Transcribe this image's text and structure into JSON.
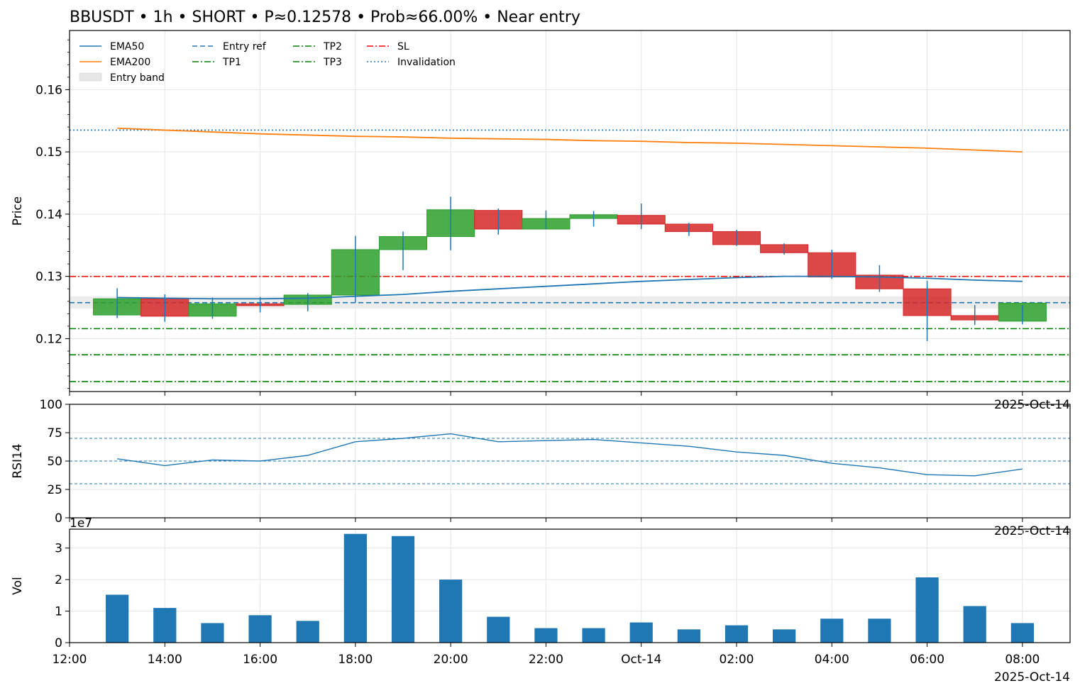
{
  "colors": {
    "ema50": "#1f77b4",
    "ema200": "#ff7f0e",
    "up": "#2ca02c",
    "down": "#d62728",
    "wick": "#1f77b4",
    "entry": "#1f77b4",
    "tp": "#008000",
    "sl": "#ff0000",
    "invalidation": "#1f77b4",
    "band": "#e6e6e6",
    "volume": "#1f77b4",
    "grid": "#e5e5e5"
  },
  "chart_data": [
    {
      "type": "candlestick",
      "title": "BBUSDT • 1h • SHORT • P≈0.12578 • Prob≈66.00% • Near entry",
      "ylabel": "Price",
      "ylim": [
        0.1115,
        0.1695
      ],
      "yticks": [
        0.12,
        0.13,
        0.14,
        0.15,
        0.16
      ],
      "ytick_labels": [
        "0.12",
        "0.13",
        "0.14",
        "0.15",
        "0.16"
      ],
      "xlim": [
        0,
        21
      ],
      "xticks": [
        0,
        2,
        4,
        6,
        8,
        10,
        12,
        14,
        16,
        18,
        20
      ],
      "xtick_labels": [
        "12:00",
        "14:00",
        "16:00",
        "18:00",
        "20:00",
        "22:00",
        "Oct-14",
        "02:00",
        "04:00",
        "06:00",
        "08:00"
      ],
      "offset_text": "2025-Oct-14",
      "grid": true,
      "legend_position": "top-left",
      "legend": [
        {
          "label": "EMA50",
          "style": "solid",
          "color": "#1f77b4"
        },
        {
          "label": "EMA200",
          "style": "solid",
          "color": "#ff7f0e"
        },
        {
          "label": "Entry band",
          "style": "patch",
          "color": "#e6e6e6"
        },
        {
          "label": "Entry ref",
          "style": "dashed",
          "color": "#1f77b4"
        },
        {
          "label": "TP1",
          "style": "dashdot",
          "color": "#008000"
        },
        {
          "label": "TP2",
          "style": "dashdot",
          "color": "#008000"
        },
        {
          "label": "TP3",
          "style": "dashdot",
          "color": "#008000"
        },
        {
          "label": "SL",
          "style": "dashdot",
          "color": "#ff0000"
        },
        {
          "label": "Invalidation",
          "style": "dotted",
          "color": "#1f77b4"
        }
      ],
      "candles": [
        {
          "x": 1,
          "open": 0.1238,
          "high": 0.1281,
          "low": 0.1233,
          "close": 0.1264
        },
        {
          "x": 2,
          "open": 0.1264,
          "high": 0.1271,
          "low": 0.1227,
          "close": 0.1236
        },
        {
          "x": 3,
          "open": 0.1236,
          "high": 0.1266,
          "low": 0.1232,
          "close": 0.1256
        },
        {
          "x": 4,
          "open": 0.1256,
          "high": 0.1267,
          "low": 0.1242,
          "close": 0.1253
        },
        {
          "x": 5,
          "open": 0.1255,
          "high": 0.1273,
          "low": 0.1244,
          "close": 0.127
        },
        {
          "x": 6,
          "open": 0.127,
          "high": 0.1365,
          "low": 0.1258,
          "close": 0.1343
        },
        {
          "x": 7,
          "open": 0.1343,
          "high": 0.1372,
          "low": 0.131,
          "close": 0.1364
        },
        {
          "x": 8,
          "open": 0.1364,
          "high": 0.1428,
          "low": 0.1342,
          "close": 0.1407
        },
        {
          "x": 9,
          "open": 0.1406,
          "high": 0.1409,
          "low": 0.1367,
          "close": 0.1376
        },
        {
          "x": 10,
          "open": 0.1376,
          "high": 0.1406,
          "low": 0.1376,
          "close": 0.1393
        },
        {
          "x": 11,
          "open": 0.1393,
          "high": 0.1405,
          "low": 0.138,
          "close": 0.1399
        },
        {
          "x": 12,
          "open": 0.1398,
          "high": 0.1417,
          "low": 0.1376,
          "close": 0.1384
        },
        {
          "x": 13,
          "open": 0.1384,
          "high": 0.1386,
          "low": 0.1365,
          "close": 0.1372
        },
        {
          "x": 14,
          "open": 0.1372,
          "high": 0.1375,
          "low": 0.1349,
          "close": 0.1351
        },
        {
          "x": 15,
          "open": 0.1351,
          "high": 0.1353,
          "low": 0.1335,
          "close": 0.1338
        },
        {
          "x": 16,
          "open": 0.1338,
          "high": 0.1343,
          "low": 0.1296,
          "close": 0.1299
        },
        {
          "x": 17,
          "open": 0.1302,
          "high": 0.1318,
          "low": 0.1275,
          "close": 0.128
        },
        {
          "x": 18,
          "open": 0.128,
          "high": 0.1293,
          "low": 0.1196,
          "close": 0.1237
        },
        {
          "x": 19,
          "open": 0.1237,
          "high": 0.1254,
          "low": 0.1222,
          "close": 0.123
        },
        {
          "x": 20,
          "open": 0.1228,
          "high": 0.1254,
          "low": 0.1223,
          "close": 0.1257
        }
      ],
      "series": [
        {
          "name": "EMA50",
          "x": [
            1,
            2,
            3,
            4,
            5,
            6,
            7,
            8,
            9,
            10,
            11,
            12,
            13,
            14,
            15,
            16,
            17,
            18,
            19,
            20
          ],
          "values": [
            0.1266,
            0.1265,
            0.1264,
            0.1264,
            0.1265,
            0.1268,
            0.1271,
            0.1276,
            0.128,
            0.1284,
            0.1288,
            0.1292,
            0.1295,
            0.1298,
            0.13,
            0.13,
            0.1299,
            0.1297,
            0.1294,
            0.1292
          ]
        },
        {
          "name": "EMA200",
          "x": [
            1,
            2,
            3,
            4,
            5,
            6,
            7,
            8,
            9,
            10,
            11,
            12,
            13,
            14,
            15,
            16,
            17,
            18,
            19,
            20
          ],
          "values": [
            0.1538,
            0.1535,
            0.1532,
            0.1529,
            0.1527,
            0.1525,
            0.1524,
            0.1522,
            0.1521,
            0.152,
            0.1518,
            0.1517,
            0.1515,
            0.1514,
            0.1512,
            0.151,
            0.1508,
            0.1506,
            0.1503,
            0.15
          ]
        }
      ],
      "hlines": [
        {
          "name": "Entry ref",
          "y": 0.12578
        },
        {
          "name": "TP1",
          "y": 0.1216
        },
        {
          "name": "TP2",
          "y": 0.1174
        },
        {
          "name": "TP3",
          "y": 0.1131
        },
        {
          "name": "SL",
          "y": 0.13
        },
        {
          "name": "Invalidation",
          "y": 0.1535
        }
      ],
      "entry_band": [
        0.1248,
        0.1268
      ]
    },
    {
      "type": "line",
      "ylabel": "RSI14",
      "ylim": [
        0,
        100
      ],
      "yticks": [
        0,
        25,
        50,
        75,
        100
      ],
      "ytick_labels": [
        "0",
        "25",
        "50",
        "75",
        "100"
      ],
      "offset_text": "2025-Oct-14",
      "guide_levels": [
        30,
        50,
        70
      ],
      "series": [
        {
          "name": "RSI14",
          "x": [
            1,
            2,
            3,
            4,
            5,
            6,
            7,
            8,
            9,
            10,
            11,
            12,
            13,
            14,
            15,
            16,
            17,
            18,
            19,
            20
          ],
          "values": [
            52,
            46,
            51,
            50,
            55,
            67,
            70,
            74,
            67,
            68,
            69,
            66,
            63,
            58,
            55,
            48,
            44,
            38,
            37,
            43
          ]
        }
      ]
    },
    {
      "type": "bar",
      "ylabel": "Vol",
      "scale_label": "1e7",
      "ylim": [
        0,
        3.6
      ],
      "yticks": [
        0,
        1,
        2,
        3
      ],
      "ytick_labels": [
        "0",
        "1",
        "2",
        "3"
      ],
      "offset_text": "2025-Oct-14",
      "x": [
        1,
        2,
        3,
        4,
        5,
        6,
        7,
        8,
        9,
        10,
        11,
        12,
        13,
        14,
        15,
        16,
        17,
        18,
        19,
        20
      ],
      "values": [
        1.52,
        1.1,
        0.62,
        0.87,
        0.69,
        3.45,
        3.38,
        2.0,
        0.82,
        0.46,
        0.46,
        0.64,
        0.42,
        0.55,
        0.42,
        0.76,
        0.76,
        2.07,
        1.16,
        0.62
      ]
    }
  ]
}
